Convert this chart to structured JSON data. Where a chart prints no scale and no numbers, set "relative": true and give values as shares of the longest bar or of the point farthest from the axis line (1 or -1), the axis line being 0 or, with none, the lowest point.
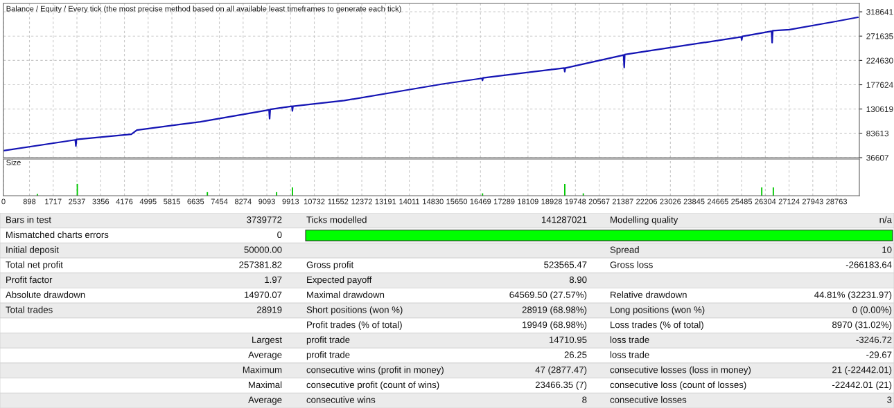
{
  "chart_data": [
    {
      "type": "line",
      "title": "Balance / Equity / Every tick (the most precise method based on all available least timeframes to generate each tick)",
      "series": [
        {
          "color": "#1414b4",
          "x": [
            0,
            2480,
            2500,
            2520,
            4415,
            4606,
            6802,
            9170,
            9189,
            9210,
            9960,
            9976,
            9995,
            11766,
            15155,
            16520,
            16539,
            16560,
            19360,
            19379,
            19400,
            21410,
            21432,
            21450,
            22267,
            25470,
            25489,
            25510,
            26520,
            26539,
            26560,
            27136,
            28735,
            29500
          ],
          "values": [
            50000,
            71000,
            59000,
            72000,
            82000,
            90000,
            106000,
            129000,
            112000,
            130000,
            136000,
            127000,
            136000,
            147000,
            179000,
            190000,
            186000,
            191000,
            210000,
            203000,
            210000,
            235000,
            211000,
            236000,
            243000,
            270000,
            264000,
            271000,
            281000,
            259000,
            282000,
            284000,
            300000,
            308000
          ]
        }
      ],
      "xlim": [
        0,
        29550
      ],
      "ylim": [
        36607,
        334760
      ],
      "xticks": [
        0,
        898,
        1717,
        2537,
        3356,
        4176,
        4995,
        5815,
        6635,
        7454,
        8274,
        9093,
        9913,
        10732,
        11552,
        12372,
        13191,
        14011,
        14830,
        15650,
        16469,
        17289,
        18109,
        18928,
        19748,
        20567,
        21387,
        22206,
        23026,
        23845,
        24665,
        25485,
        26304,
        27124,
        27943,
        28763
      ],
      "yticks": [
        36607,
        83613,
        130619,
        177624,
        224630,
        271635,
        318641
      ],
      "tick_labels": "y",
      "grid": true,
      "line_style": "solid"
    },
    {
      "type": "bar",
      "title": "Size",
      "relative": true,
      "x": [
        1170,
        2550,
        7040,
        9430,
        9976,
        16540,
        19380,
        20020,
        26180,
        26580
      ],
      "values": [
        0.15,
        1,
        0.3,
        0.3,
        0.7,
        0.2,
        1,
        0.2,
        0.7,
        0.7
      ],
      "color": "#00c800",
      "xlim": [
        0,
        29550
      ],
      "xticks": [
        0,
        898,
        1717,
        2537,
        3356,
        4176,
        4995,
        5815,
        6635,
        7454,
        8274,
        9093,
        9913,
        10732,
        11552,
        12372,
        13191,
        14011,
        14830,
        15650,
        16469,
        17289,
        18109,
        18928,
        19748,
        20567,
        21387,
        22206,
        23026,
        23845,
        24665,
        25485,
        26304,
        27124,
        27943,
        28763
      ],
      "tick_labels": "x",
      "grid": true
    },
    {
      "type": "other",
      "annotations": [
        "Bars in test",
        "3739772",
        "Ticks modelled",
        "141287021",
        "Modelling quality",
        "n/a",
        "Mismatched charts errors",
        "0",
        null,
        null,
        null,
        null,
        "Initial deposit",
        "50000.00",
        null,
        null,
        "Spread",
        "10",
        "Total net profit",
        "257381.82",
        "Gross profit",
        "523565.47",
        "Gross loss",
        "-266183.64",
        "Profit factor",
        "1.97",
        "Expected payoff",
        "8.90",
        null,
        null,
        "Absolute drawdown",
        "14970.07",
        "Maximal drawdown",
        "64569.50 (27.57%)",
        "Relative drawdown",
        "44.81% (32231.97)",
        "Total trades",
        "28919",
        "Short positions (won %)",
        "28919 (68.98%)",
        "Long positions (won %)",
        "0 (0.00%)",
        null,
        null,
        "Profit trades (% of total)",
        "19949 (68.98%)",
        "Loss trades (% of total)",
        "8970 (31.02%)",
        null,
        "Largest",
        "profit trade",
        "14710.95",
        "loss trade",
        "-3246.72",
        null,
        "Average",
        "profit trade",
        "26.25",
        "loss trade",
        "-29.67",
        null,
        "Maximum",
        "consecutive wins (profit in money)",
        "47 (2877.47)",
        "consecutive losses (loss in money)",
        "21 (-22442.01)",
        null,
        "Maximal",
        "consecutive profit (count of wins)",
        "23466.35 (7)",
        "consecutive loss (count of losses)",
        "-22442.01 (21)",
        null,
        "Average",
        "consecutive wins",
        "8",
        "consecutive losses",
        "3"
      ]
    }
  ]
}
